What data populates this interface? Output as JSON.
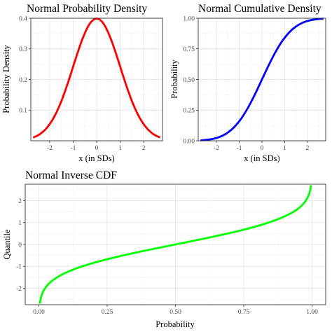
{
  "chart_data": [
    {
      "type": "line",
      "title": "Normal Probability Density",
      "xlabel": "x (in SDs)",
      "ylabel": "Probability Density",
      "xlim": [
        -2.8,
        2.8
      ],
      "ylim": [
        0,
        0.4
      ],
      "x_ticks": [
        -2,
        -1,
        0,
        1,
        2
      ],
      "y_ticks": [
        0.1,
        0.2,
        0.3,
        0.4
      ],
      "y_tick_decimals": 1,
      "grid": true,
      "series": [
        {
          "color": "#ff0000",
          "x": [
            -2.7,
            -2.4,
            -2.1,
            -1.8,
            -1.5,
            -1.2,
            -0.9,
            -0.6,
            -0.3,
            0,
            0.3,
            0.6,
            0.9,
            1.2,
            1.5,
            1.8,
            2.1,
            2.4,
            2.7
          ],
          "y": [
            0.0104,
            0.0224,
            0.044,
            0.079,
            0.1295,
            0.1942,
            0.2661,
            0.3332,
            0.3814,
            0.3989,
            0.3814,
            0.3332,
            0.2661,
            0.1942,
            0.1295,
            0.079,
            0.044,
            0.0224,
            0.0104
          ]
        }
      ]
    },
    {
      "type": "line",
      "title": "Normal Cumulative Density",
      "xlabel": "x (in SDs)",
      "ylabel": "Probability",
      "xlim": [
        -2.8,
        2.8
      ],
      "ylim": [
        0,
        1
      ],
      "x_ticks": [
        -2,
        -1,
        0,
        1,
        2
      ],
      "y_ticks": [
        0,
        0.25,
        0.5,
        0.75,
        1
      ],
      "y_tick_decimals": 2,
      "grid": true,
      "series": [
        {
          "color": "#0000ff",
          "x": [
            -2.7,
            -2.4,
            -2.1,
            -1.8,
            -1.5,
            -1.2,
            -0.9,
            -0.6,
            -0.3,
            0,
            0.3,
            0.6,
            0.9,
            1.2,
            1.5,
            1.8,
            2.1,
            2.4,
            2.7
          ],
          "y": [
            0.0035,
            0.0082,
            0.0179,
            0.0359,
            0.0668,
            0.1151,
            0.1841,
            0.2743,
            0.3821,
            0.5,
            0.6179,
            0.7257,
            0.8159,
            0.8849,
            0.9332,
            0.9641,
            0.9821,
            0.9918,
            0.9965
          ]
        }
      ]
    },
    {
      "type": "line",
      "title": "Normal Inverse CDF",
      "xlabel": "Probability",
      "ylabel": "Quantile",
      "xlim": [
        -0.05,
        1.05
      ],
      "ylim": [
        -2.75,
        2.75
      ],
      "x_ticks": [
        0,
        0.25,
        0.5,
        0.75,
        1
      ],
      "x_tick_decimals": 2,
      "y_ticks": [
        -2,
        -1,
        0,
        1,
        2
      ],
      "grid": true,
      "series": [
        {
          "color": "#00ff00",
          "x": [
            0.0035,
            0.0082,
            0.0179,
            0.0359,
            0.0668,
            0.1151,
            0.1841,
            0.2743,
            0.3821,
            0.5,
            0.6179,
            0.7257,
            0.8159,
            0.8849,
            0.9332,
            0.9641,
            0.9821,
            0.9918,
            0.9965
          ],
          "y": [
            -2.7,
            -2.4,
            -2.1,
            -1.8,
            -1.5,
            -1.2,
            -0.9,
            -0.6,
            -0.3,
            0,
            0.3,
            0.6,
            0.9,
            1.2,
            1.5,
            1.8,
            2.1,
            2.4,
            2.7
          ]
        }
      ]
    }
  ]
}
